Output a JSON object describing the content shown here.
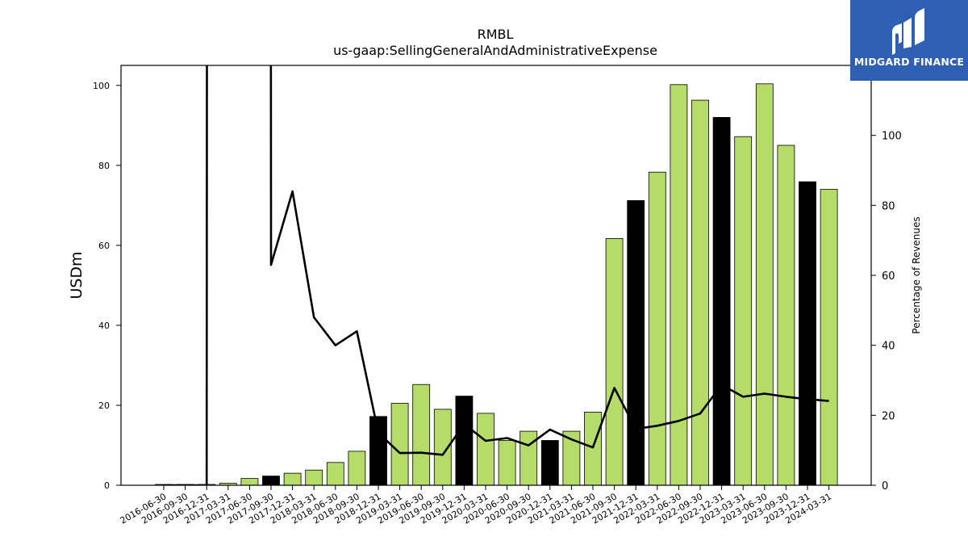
{
  "logo": {
    "text": "MIDGARD FINANCE",
    "icon": "midgard-m-logo-icon",
    "background": "#2f5fb3"
  },
  "chart_data": {
    "type": "bar",
    "title": "RMBL",
    "subtitle": "us-gaap:SellingGeneralAndAdministrativeExpense",
    "ylabel": "USDm",
    "y2label": "Percentage of Revenues",
    "ylim": [
      0,
      105
    ],
    "y2lim": [
      0,
      120
    ],
    "yticks": [
      0,
      20,
      40,
      60,
      80,
      100
    ],
    "y2ticks": [
      0,
      20,
      40,
      60,
      80,
      100
    ],
    "bar_color": "#b5dc68",
    "highlight_color": "#000000",
    "categories": [
      "2016-06-30",
      "2016-09-30",
      "2016-12-31",
      "2017-03-31",
      "2017-06-30",
      "2017-09-30",
      "2017-12-31",
      "2018-03-31",
      "2018-06-30",
      "2018-09-30",
      "2018-12-31",
      "2019-03-31",
      "2019-06-30",
      "2019-09-30",
      "2019-12-31",
      "2020-03-31",
      "2020-06-30",
      "2020-09-30",
      "2020-12-31",
      "2021-03-31",
      "2021-06-30",
      "2021-09-30",
      "2021-12-31",
      "2022-03-31",
      "2022-06-30",
      "2022-09-30",
      "2022-12-31",
      "2023-03-31",
      "2023-06-30",
      "2023-09-30",
      "2023-12-31",
      "2024-03-31"
    ],
    "series": [
      {
        "type": "bar",
        "values": [
          0.2,
          0.2,
          0.2,
          0.5,
          1.7,
          2.3,
          3.0,
          3.8,
          5.7,
          8.5,
          17.2,
          20.5,
          25.2,
          19.0,
          22.3,
          18.0,
          11.2,
          13.5,
          11.2,
          13.5,
          18.3,
          61.7,
          71.2,
          78.3,
          100.2,
          96.3,
          92.0,
          87.2,
          100.4,
          85.0,
          75.9,
          74.0
        ],
        "highlight": [
          false,
          false,
          false,
          false,
          false,
          true,
          false,
          false,
          false,
          false,
          true,
          false,
          false,
          false,
          true,
          false,
          false,
          false,
          true,
          false,
          false,
          false,
          true,
          false,
          false,
          false,
          true,
          false,
          false,
          false,
          true,
          false
        ]
      },
      {
        "type": "line",
        "axis": "right",
        "color": "#000000",
        "values": [
          0,
          0,
          0,
          null,
          null,
          63,
          84,
          48,
          40,
          44,
          15,
          9.2,
          9.3,
          8.7,
          17.5,
          12.7,
          13.5,
          11.4,
          15.9,
          13.1,
          10.8,
          27.8,
          16.1,
          17.0,
          18.4,
          20.5,
          28.7,
          25.3,
          26.2,
          25.3,
          24.6,
          24.1
        ]
      }
    ],
    "line_offscale_top": true,
    "grid": false,
    "legend": "none"
  }
}
